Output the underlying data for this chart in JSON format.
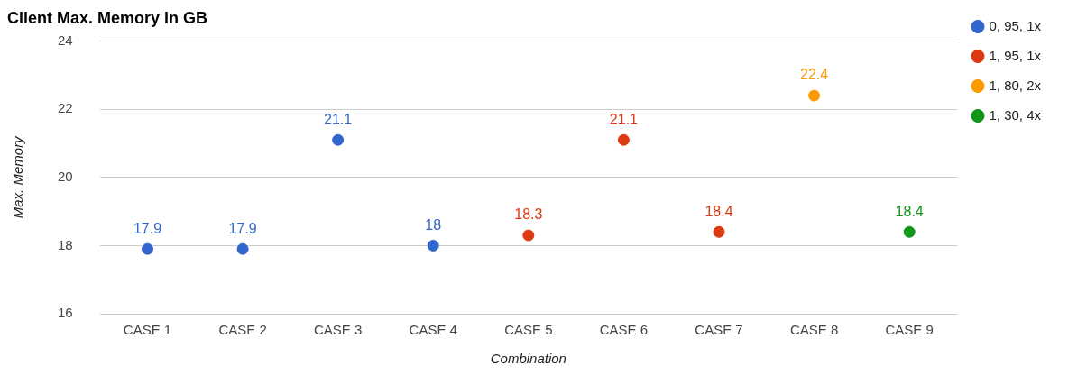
{
  "chart_data": {
    "type": "scatter",
    "title": "Client Max. Memory in GB",
    "xlabel": "Combination",
    "ylabel": "Max. Memory",
    "categories": [
      "CASE 1",
      "CASE 2",
      "CASE 3",
      "CASE 4",
      "CASE 5",
      "CASE 6",
      "CASE 7",
      "CASE 8",
      "CASE 9"
    ],
    "series": [
      {
        "name": "0, 95, 1x",
        "color": "#3366cc",
        "values": [
          17.9,
          17.9,
          21.1,
          18,
          null,
          null,
          null,
          null,
          null
        ]
      },
      {
        "name": "1, 95, 1x",
        "color": "#dc3912",
        "values": [
          null,
          null,
          null,
          null,
          18.3,
          21.1,
          18.4,
          null,
          null
        ]
      },
      {
        "name": "1, 80, 2x",
        "color": "#ff9900",
        "values": [
          null,
          null,
          null,
          null,
          null,
          null,
          null,
          22.4,
          null
        ]
      },
      {
        "name": "1, 30, 4x",
        "color": "#109618",
        "values": [
          null,
          null,
          null,
          null,
          null,
          null,
          null,
          null,
          18.4
        ]
      }
    ],
    "ylim": [
      16,
      24
    ],
    "yticks": [
      16,
      18,
      20,
      22,
      24
    ],
    "grid": "y",
    "legend": "right",
    "marker": "circle",
    "data_labels": true
  }
}
